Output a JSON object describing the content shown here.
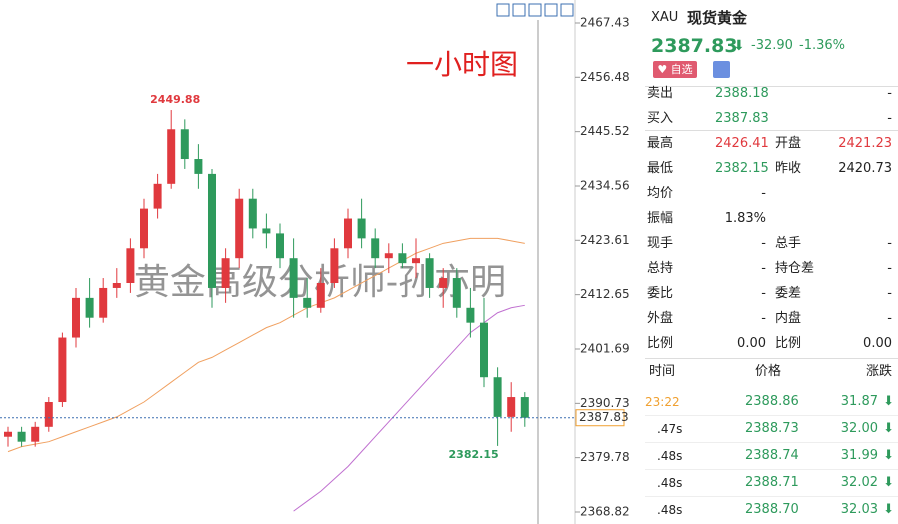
{
  "chart_data": {
    "type": "candlestick",
    "title": "一小时图",
    "watermark": "黄金高级分析师-孙亦明",
    "up_color": "#e0393e",
    "down_color": "#2e9a5c",
    "ylim": [
      2368.82,
      2467.43
    ],
    "yticks": [
      2368.82,
      2379.78,
      2390.73,
      2401.69,
      2412.65,
      2423.61,
      2434.56,
      2445.52,
      2456.48,
      2467.43
    ],
    "open": [
      2384,
      2385,
      2383,
      2386,
      2391,
      2404,
      2412,
      2408,
      2414,
      2415,
      2422,
      2430,
      2435,
      2446,
      2440,
      2437,
      2414,
      2420,
      2432,
      2426,
      2425,
      2420,
      2412,
      2410,
      2415,
      2422,
      2428,
      2424,
      2420,
      2421,
      2419,
      2420,
      2414,
      2416,
      2410,
      2407,
      2396,
      2388,
      2392
    ],
    "high": [
      2386,
      2386,
      2387,
      2392,
      2405,
      2414,
      2416,
      2416,
      2418,
      2424,
      2432,
      2437,
      2449.88,
      2448,
      2443,
      2438,
      2422,
      2434,
      2434,
      2429,
      2427,
      2424,
      2416,
      2418,
      2424,
      2430,
      2432,
      2426,
      2423,
      2423,
      2424,
      2421,
      2418,
      2418,
      2414,
      2412,
      2398,
      2395,
      2393
    ],
    "low": [
      2382,
      2382,
      2382,
      2385,
      2390,
      2402,
      2406,
      2407,
      2412,
      2413,
      2420,
      2428,
      2434,
      2438,
      2434,
      2410,
      2411,
      2418,
      2424,
      2422,
      2418,
      2408,
      2408,
      2409,
      2414,
      2420,
      2422,
      2418,
      2417,
      2418,
      2416,
      2412,
      2410,
      2408,
      2404,
      2394,
      2382.15,
      2385,
      2386
    ],
    "close": [
      2385,
      2383,
      2386,
      2391,
      2404,
      2412,
      2408,
      2414,
      2415,
      2422,
      2430,
      2435,
      2446,
      2440,
      2437,
      2414,
      2420,
      2432,
      2426,
      2425,
      2420,
      2412,
      2410,
      2415,
      2422,
      2428,
      2424,
      2420,
      2421,
      2419,
      2420,
      2414,
      2416,
      2410,
      2407,
      2396,
      2388,
      2392,
      2387.83
    ],
    "series": [
      {
        "color": "#f0a060",
        "values": [
          2381,
          2382,
          2382.5,
          2383,
          2384,
          2385,
          2386,
          2387,
          2388,
          2389.5,
          2391,
          2393,
          2395,
          2397,
          2399,
          2400,
          2401.5,
          2403,
          2404.5,
          2406,
          2407,
          2408.5,
          2410,
          2411,
          2412,
          2413.5,
          2415,
          2416.5,
          2418,
          2419.5,
          2421,
          2422,
          2423,
          2423.5,
          2424,
          2424,
          2424,
          2423.5,
          2423
        ]
      },
      {
        "color": "#c070d0",
        "values": [
          null,
          null,
          null,
          null,
          null,
          null,
          null,
          null,
          null,
          null,
          null,
          null,
          null,
          null,
          null,
          null,
          null,
          null,
          null,
          null,
          null,
          2369,
          2371,
          2373,
          2375.5,
          2378,
          2381,
          2384,
          2387,
          2390,
          2393,
          2396,
          2399,
          2402,
          2405,
          2407,
          2409,
          2410,
          2410.5
        ]
      }
    ],
    "high_label": 2449.88,
    "low_label": 2382.15,
    "last_price": 2387.83
  },
  "quote_panel": {
    "symbol": "XAU",
    "name": "现货黄金",
    "price": "2387.83",
    "change": "-32.90",
    "change_pct": "-1.36%",
    "watchlist_button": "自选",
    "rows": [
      [
        "卖出",
        "2388.18",
        "",
        "-"
      ],
      [
        "买入",
        "2387.83",
        "",
        "-"
      ],
      [
        "最高",
        "2426.41",
        "开盘",
        "2421.23"
      ],
      [
        "最低",
        "2382.15",
        "昨收",
        "2420.73"
      ],
      [
        "均价",
        "-",
        "",
        ""
      ],
      [
        "振幅",
        "1.83%",
        "",
        ""
      ],
      [
        "现手",
        "-",
        "总手",
        "-"
      ],
      [
        "总持",
        "-",
        "持仓差",
        "-"
      ],
      [
        "委比",
        "-",
        "委差",
        "-"
      ],
      [
        "外盘",
        "-",
        "内盘",
        "-"
      ],
      [
        "比例",
        "0.00",
        "比例",
        "0.00"
      ]
    ],
    "ticks_header": [
      "时间",
      "价格",
      "涨跌"
    ],
    "ticks": [
      [
        "23:22",
        "2388.86",
        "31.87"
      ],
      [
        ".47s",
        "2388.73",
        "32.00"
      ],
      [
        ".48s",
        "2388.74",
        "31.99"
      ],
      [
        ".48s",
        "2388.71",
        "32.02"
      ],
      [
        ".48s",
        "2388.70",
        "32.03"
      ]
    ]
  }
}
